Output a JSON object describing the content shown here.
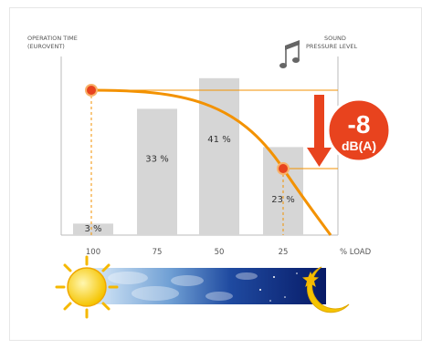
{
  "chart_data": {
    "type": "bar",
    "categories": [
      "100",
      "75",
      "50",
      "25"
    ],
    "values": [
      3,
      33,
      41,
      23
    ],
    "value_labels": [
      "3 %",
      "33 %",
      "41 %",
      "23 %"
    ],
    "xlabel": "% LOAD",
    "ylabel_left": [
      "OPERATION TIME",
      "(EUROVENT)"
    ],
    "ylabel_right": [
      "SOUND",
      "PRESSURE LEVEL"
    ],
    "ylim": [
      0,
      45
    ],
    "sound_curve": {
      "x": [
        100,
        75,
        50,
        25,
        10
      ],
      "markers": [
        100,
        25
      ]
    },
    "annotation": {
      "value": "-8",
      "unit": "dB(A)"
    },
    "grid": false,
    "legend": "none"
  },
  "colors": {
    "bar": "#d6d6d6",
    "curve": "#f39200",
    "badge": "#e8431e",
    "arrow": "#e8431e"
  },
  "icons": [
    "music-note-icon",
    "sun-icon",
    "moon-icon",
    "star-icon"
  ]
}
